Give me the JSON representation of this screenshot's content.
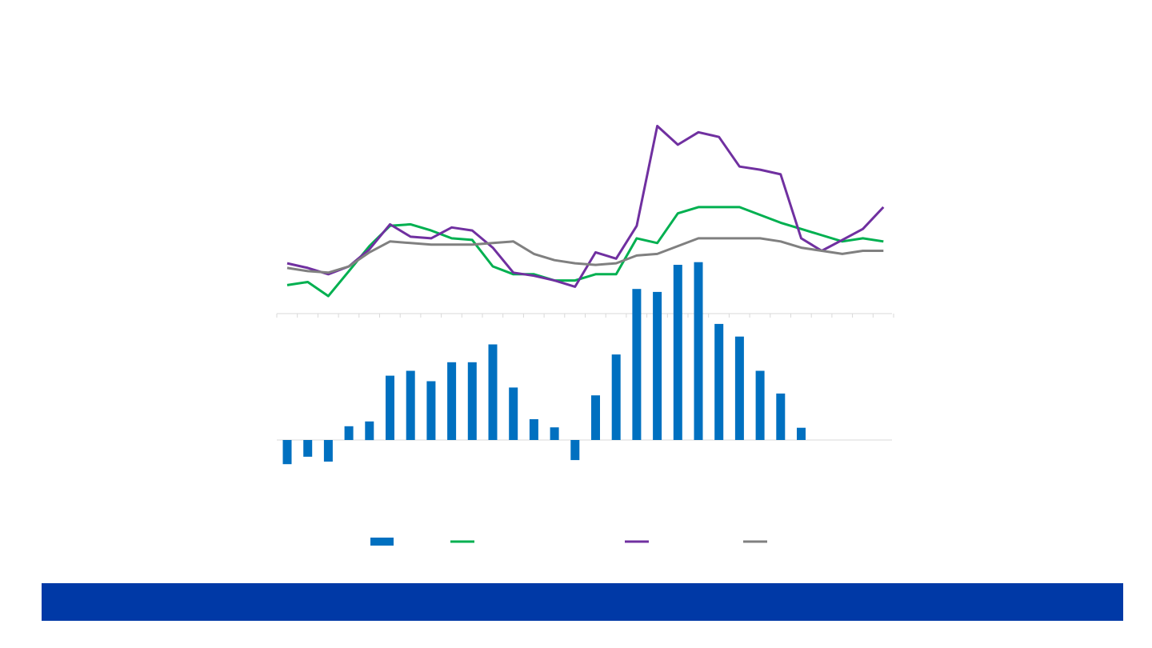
{
  "chart_data": [
    {
      "type": "line",
      "series": [
        {
          "color": "#00b050",
          "values": [
            0.08,
            0.1,
            0.01,
            0.17,
            0.33,
            0.46,
            0.47,
            0.43,
            0.38,
            0.37,
            0.2,
            0.15,
            0.15,
            0.11,
            0.11,
            0.15,
            0.15,
            0.38,
            0.35,
            0.54,
            0.58,
            0.58,
            0.58,
            0.53,
            0.48,
            0.44,
            0.4,
            0.36,
            0.38,
            0.36
          ]
        },
        {
          "color": "#7030a0",
          "values": [
            0.22,
            0.19,
            0.15,
            0.2,
            0.31,
            0.47,
            0.39,
            0.38,
            0.45,
            0.43,
            0.32,
            0.16,
            0.14,
            0.11,
            0.07,
            0.29,
            0.25,
            0.46,
            1.1,
            0.98,
            1.06,
            1.03,
            0.84,
            0.82,
            0.79,
            0.38,
            0.3,
            0.37,
            0.44,
            0.58
          ]
        },
        {
          "color": "#808080",
          "values": [
            0.19,
            0.17,
            0.16,
            0.2,
            0.29,
            0.36,
            0.35,
            0.34,
            0.34,
            0.34,
            0.35,
            0.36,
            0.28,
            0.24,
            0.22,
            0.21,
            0.22,
            0.27,
            0.28,
            0.33,
            0.38,
            0.38,
            0.38,
            0.38,
            0.36,
            0.32,
            0.3,
            0.28,
            0.3,
            0.3
          ]
        }
      ]
    },
    {
      "type": "bar",
      "color": "#0070c0",
      "values": [
        -0.65,
        -0.45,
        -0.58,
        0.37,
        0.5,
        1.73,
        1.86,
        1.58,
        2.09,
        2.09,
        2.57,
        1.41,
        0.56,
        0.34,
        -0.54,
        1.2,
        2.3,
        4.06,
        3.98,
        4.71,
        4.78,
        3.12,
        2.78,
        1.86,
        1.25,
        0.33,
        0,
        0,
        0,
        0
      ]
    }
  ],
  "legend": [
    {
      "type": "bar",
      "color": "#0070c0"
    },
    {
      "type": "line",
      "color": "#00b050"
    },
    {
      "type": "line",
      "color": "#7030a0"
    },
    {
      "type": "line",
      "color": "#808080"
    }
  ],
  "footer": {
    "color": "#0039a6"
  }
}
